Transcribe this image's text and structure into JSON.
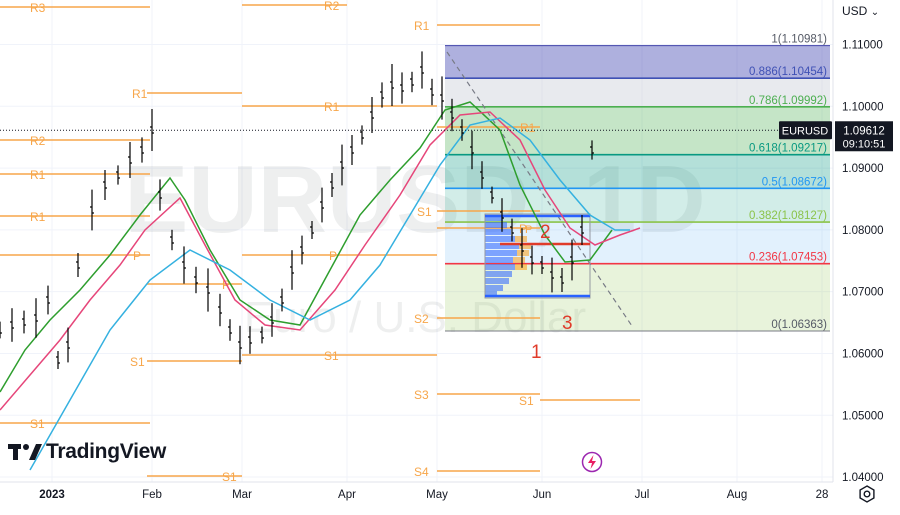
{
  "symbol": "EURUSD",
  "watermark": {
    "title": "EURUSD, 1D",
    "subtitle": "Euro / U.S. Dollar"
  },
  "currency_button": {
    "label": "USD"
  },
  "logo": {
    "text": "TradingView"
  },
  "price_label": {
    "price": "1.09612",
    "countdown": "09:10:51"
  },
  "icons": {
    "currency_chevron": "chevron-down-icon",
    "settings": "gear-icon",
    "alert": "lightning-icon",
    "logo": "tradingview-logo-icon"
  },
  "colors": {
    "up": "#000000",
    "fib_100": "#3d3fa8",
    "fib_886": "#3f51b5",
    "fib_786": "#4caf50",
    "fib_618": "#089981",
    "fib_5": "#2196f3",
    "fib_382": "#8bc34a",
    "fib_236": "#f23645",
    "fib_0": "#787b86",
    "pivot": "#f7a64a",
    "ema_fast": "#2e9e2e",
    "ema_mid": "#e6467a",
    "ema_slow": "#35b1e0",
    "annotation": "#e03b2a"
  },
  "chart_data": {
    "type": "candlestick",
    "title": "",
    "x_labels": [
      "2023",
      "Feb",
      "Mar",
      "Apr",
      "May",
      "Jun",
      "Jul",
      "Aug",
      "28"
    ],
    "y_ticks": [
      "1.11000",
      "1.10000",
      "1.09000",
      "1.08000",
      "1.07000",
      "1.06000",
      "1.05000",
      "1.04000"
    ],
    "ylim": [
      1.0392,
      1.1172
    ],
    "last_price": 1.09612,
    "fibonacci": [
      {
        "ratio": "1",
        "price": "1.10981"
      },
      {
        "ratio": "0.886",
        "price": "1.10454"
      },
      {
        "ratio": "0.786",
        "price": "1.09992"
      },
      {
        "ratio": "0.618",
        "price": "1.09217"
      },
      {
        "ratio": "0.5",
        "price": "1.08672"
      },
      {
        "ratio": "0.382",
        "price": "1.08127"
      },
      {
        "ratio": "0.236",
        "price": "1.07453"
      },
      {
        "ratio": "0",
        "price": "1.06363"
      }
    ],
    "pivots": [
      {
        "label": "R3",
        "price": 1.1158
      },
      {
        "label": "R2",
        "price": 1.0983
      },
      {
        "label": "R1",
        "price": 1.103
      },
      {
        "label": "R1",
        "price": 1.0888
      },
      {
        "label": "R1",
        "price": 1.0823
      },
      {
        "label": "S1",
        "price": 1.081
      },
      {
        "label": "P",
        "price": 1.0766
      },
      {
        "label": "P",
        "price": 1.0718
      },
      {
        "label": "S1",
        "price": 1.0606
      },
      {
        "label": "S1",
        "price": 1.0489
      },
      {
        "label": "S1",
        "price": 1.0403
      },
      {
        "label": "R2",
        "price": 1.116
      },
      {
        "label": "R1",
        "price": 1.101
      },
      {
        "label": "P",
        "price": 1.0766
      },
      {
        "label": "S1",
        "price": 1.06
      },
      {
        "label": "R1",
        "price": 1.1125
      },
      {
        "label": "R1",
        "price": 1.0985
      },
      {
        "label": "S1",
        "price": 1.0832
      },
      {
        "label": "P",
        "price": 1.0796
      },
      {
        "label": "S2",
        "price": 1.0656
      },
      {
        "label": "S3",
        "price": 1.0527
      },
      {
        "label": "S4",
        "price": 1.04
      },
      {
        "label": "S1",
        "price": 1.0517
      }
    ],
    "annotations": [
      "1",
      "2",
      "3"
    ]
  }
}
